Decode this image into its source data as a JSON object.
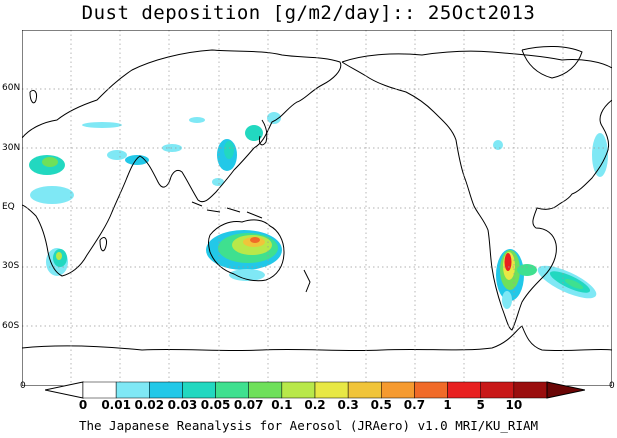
{
  "title": "Dust deposition [g/m2/day]:: 25Oct2013",
  "lat_labels": [
    {
      "text": "60N",
      "lat": 60
    },
    {
      "text": "30N",
      "lat": 30
    },
    {
      "text": "EQ",
      "lat": 0
    },
    {
      "text": "30S",
      "lat": -30
    },
    {
      "text": "60S",
      "lat": -60
    }
  ],
  "edge_labels": {
    "left": "0",
    "right": "0"
  },
  "colorbar": {
    "labels": [
      "0",
      "0.01",
      "0.02",
      "0.03",
      "0.05",
      "0.07",
      "0.1",
      "0.2",
      "0.3",
      "0.5",
      "0.7",
      "1",
      "5",
      "10"
    ],
    "colors": [
      "#ffffff",
      "#ffffff",
      "#7fe8f5",
      "#22c8e8",
      "#22d8c0",
      "#3fe08f",
      "#6fe05a",
      "#b8e84a",
      "#e8e845",
      "#f0c43a",
      "#f59a30",
      "#f06a28",
      "#e82020",
      "#c81818",
      "#9a0e0e",
      "#6a0606"
    ]
  },
  "footer": "The Japanese Reanalysis for Aerosol (JRAero) v1.0 MRI/KU_RIAM",
  "map_data": {
    "projection": "equirectangular",
    "lon_range": [
      0,
      360
    ],
    "lat_range": [
      -90,
      90
    ],
    "dust_regions": [
      {
        "name": "australia",
        "level": "0.5"
      },
      {
        "name": "south-america",
        "level": "1"
      },
      {
        "name": "south-atlantic",
        "level": "0.07"
      },
      {
        "name": "southern-africa",
        "level": "0.1"
      },
      {
        "name": "east-asia",
        "level": "0.05"
      },
      {
        "name": "sahara",
        "level": "0.03"
      }
    ]
  }
}
